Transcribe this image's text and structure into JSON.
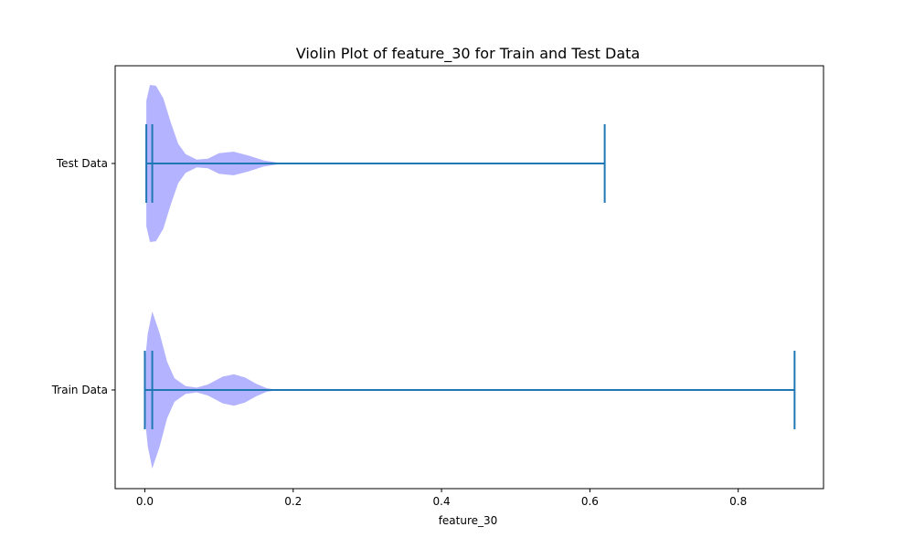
{
  "chart_data": {
    "type": "violin",
    "orientation": "horizontal",
    "title": "Violin Plot of feature_30 for Train and Test Data",
    "xlabel": "feature_30",
    "ylabel": "",
    "xlim": [
      -0.04,
      0.915
    ],
    "xticks": [
      0.0,
      0.2,
      0.4,
      0.6,
      0.8
    ],
    "xtick_labels": [
      "0.0",
      "0.2",
      "0.4",
      "0.6",
      "0.8"
    ],
    "categories": [
      "Train Data",
      "Test Data"
    ],
    "series": [
      {
        "category": "Train Data",
        "min": 0.0,
        "max": 0.876,
        "median": 0.01,
        "density": [
          [
            0.0,
            0.35
          ],
          [
            0.004,
            0.72
          ],
          [
            0.01,
            1.0
          ],
          [
            0.02,
            0.72
          ],
          [
            0.03,
            0.36
          ],
          [
            0.04,
            0.15
          ],
          [
            0.055,
            0.05
          ],
          [
            0.07,
            0.03
          ],
          [
            0.085,
            0.07
          ],
          [
            0.105,
            0.17
          ],
          [
            0.12,
            0.2
          ],
          [
            0.135,
            0.16
          ],
          [
            0.15,
            0.08
          ],
          [
            0.165,
            0.02
          ],
          [
            0.18,
            0.004
          ],
          [
            0.2,
            0.001
          ],
          [
            0.876,
            0.0
          ]
        ]
      },
      {
        "category": "Test Data",
        "min": 0.002,
        "max": 0.62,
        "median": 0.01,
        "density": [
          [
            0.002,
            0.8
          ],
          [
            0.007,
            1.0
          ],
          [
            0.015,
            0.99
          ],
          [
            0.025,
            0.83
          ],
          [
            0.035,
            0.52
          ],
          [
            0.045,
            0.25
          ],
          [
            0.055,
            0.12
          ],
          [
            0.07,
            0.05
          ],
          [
            0.085,
            0.06
          ],
          [
            0.1,
            0.13
          ],
          [
            0.12,
            0.15
          ],
          [
            0.14,
            0.1
          ],
          [
            0.16,
            0.04
          ],
          [
            0.18,
            0.01
          ],
          [
            0.2,
            0.002
          ],
          [
            0.22,
            0.0
          ],
          [
            0.62,
            0.0
          ]
        ]
      }
    ],
    "fill_color": "#b3b3ff",
    "line_color": "#1f77b4",
    "grid": false,
    "legend": "none"
  }
}
